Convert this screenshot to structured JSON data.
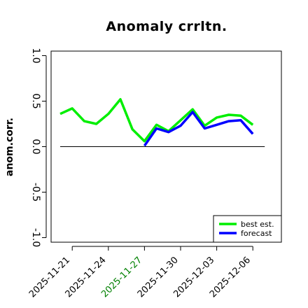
{
  "chart_data": {
    "type": "line",
    "title": "Anomaly crrltn.",
    "ylabel": "anom.corr.",
    "xlabel": "",
    "ylim": [
      -1.05,
      1.05
    ],
    "yticks": [
      -1.0,
      -0.5,
      0.0,
      0.5,
      1.0
    ],
    "ytick_labels": [
      "-1.0",
      "-0.5",
      "0.0",
      "0.5",
      "1.0"
    ],
    "x": [
      "2025-11-20",
      "2025-11-21",
      "2025-11-22",
      "2025-11-23",
      "2025-11-24",
      "2025-11-25",
      "2025-11-26",
      "2025-11-27",
      "2025-11-28",
      "2025-11-29",
      "2025-11-30",
      "2025-12-01",
      "2025-12-02",
      "2025-12-03",
      "2025-12-04",
      "2025-12-05",
      "2025-12-06"
    ],
    "xticks": [
      "2025-11-21",
      "2025-11-24",
      "2025-11-27",
      "2025-11-30",
      "2025-12-03",
      "2025-12-06"
    ],
    "xtick_colors": [
      "#000000",
      "#000000",
      "#008000",
      "#000000",
      "#000000",
      "#000000"
    ],
    "reference_line": 0.0,
    "series": [
      {
        "name": "best est.",
        "color": "#00ee00",
        "values": [
          0.36,
          0.42,
          0.28,
          0.25,
          0.36,
          0.52,
          0.19,
          0.06,
          0.24,
          0.17,
          0.29,
          0.41,
          0.23,
          0.32,
          0.35,
          0.34,
          0.24
        ]
      },
      {
        "name": "forecast",
        "color": "#0000ff",
        "values": [
          null,
          null,
          null,
          null,
          null,
          null,
          null,
          0.01,
          0.2,
          0.16,
          0.23,
          0.38,
          0.2,
          0.24,
          0.28,
          0.29,
          0.14
        ]
      }
    ],
    "legend": {
      "position": "bottom-right",
      "entries": [
        "best est.",
        "forecast"
      ]
    },
    "grid": false
  }
}
